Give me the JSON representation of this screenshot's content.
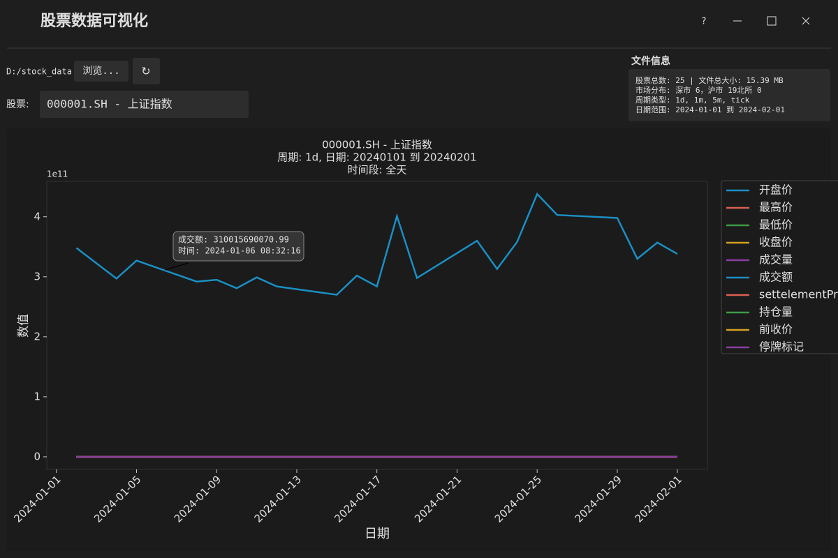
{
  "app": {
    "title": "股票数据可视化",
    "help": "?"
  },
  "controls": {
    "path": "D:/stock_data",
    "browse": "浏览...",
    "refresh": "↻",
    "stock_label": "股票:",
    "stock_value": "000001.SH - 上证指数"
  },
  "file_info": {
    "title": "文件信息",
    "lines": [
      "股票总数: 25  |  文件总大小: 15.39 MB",
      "市场分布: 深市 6，沪市 19北所 0",
      "周期类型: 1d, 1m, 5m, tick",
      "日期范围: 2024-01-01 到 2024-02-01"
    ]
  },
  "chart_data": {
    "type": "line",
    "title": [
      "000001.SH - 上证指数",
      "周期: 1d, 日期: 20240101 到 20240201",
      "时间段: 全天"
    ],
    "x_label": "日期",
    "y_label": "数值",
    "y_offset_label": "1e11",
    "annotation": [
      "成交额: 310015690070.99",
      "时间: 2024-01-06 08:32:16"
    ],
    "x": [
      "2024-01-02",
      "2024-01-04",
      "2024-01-05",
      "2024-01-08",
      "2024-01-09",
      "2024-01-10",
      "2024-01-11",
      "2024-01-12",
      "2024-01-15",
      "2024-01-16",
      "2024-01-17",
      "2024-01-18",
      "2024-01-19",
      "2024-01-22",
      "2024-01-23",
      "2024-01-24",
      "2024-01-25",
      "2024-01-26",
      "2024-01-29",
      "2024-01-30",
      "2024-01-31",
      "2024-02-01"
    ],
    "xlim": [
      "2023-12-31T12:30",
      "2024-02-02T12:00"
    ],
    "xticks": [
      "2024-01-01",
      "2024-01-05",
      "2024-01-09",
      "2024-01-13",
      "2024-01-17",
      "2024-01-21",
      "2024-01-25",
      "2024-01-29",
      "2024-02-01"
    ],
    "ylim": [
      -0.21,
      4.59
    ],
    "yticks": [
      0,
      1,
      2,
      3,
      4
    ],
    "legend": "upper right outside",
    "series": [
      {
        "name": "开盘价",
        "color": "#1a8fc4",
        "values": [
          0,
          0,
          0,
          0,
          0,
          0,
          0,
          0,
          0,
          0,
          0,
          0,
          0,
          0,
          0,
          0,
          0,
          0,
          0,
          0,
          0,
          0
        ]
      },
      {
        "name": "最高价",
        "color": "#d9604f",
        "values": [
          0,
          0,
          0,
          0,
          0,
          0,
          0,
          0,
          0,
          0,
          0,
          0,
          0,
          0,
          0,
          0,
          0,
          0,
          0,
          0,
          0,
          0
        ]
      },
      {
        "name": "最低价",
        "color": "#3d9a44",
        "values": [
          0,
          0,
          0,
          0,
          0,
          0,
          0,
          0,
          0,
          0,
          0,
          0,
          0,
          0,
          0,
          0,
          0,
          0,
          0,
          0,
          0,
          0
        ]
      },
      {
        "name": "收盘价",
        "color": "#d4a021",
        "values": [
          0,
          0,
          0,
          0,
          0,
          0,
          0,
          0,
          0,
          0,
          0,
          0,
          0,
          0,
          0,
          0,
          0,
          0,
          0,
          0,
          0,
          0
        ]
      },
      {
        "name": "成交量",
        "color": "#8a3d9e",
        "values": [
          0,
          0,
          0,
          0,
          0,
          0,
          0,
          0,
          0,
          0,
          0,
          0,
          0,
          0,
          0,
          0,
          0,
          0,
          0,
          0,
          0,
          0
        ]
      },
      {
        "name": "成交额",
        "color": "#1a8fc4",
        "values": [
          3.48,
          2.97,
          3.27,
          2.92,
          2.95,
          2.81,
          2.99,
          2.84,
          2.7,
          3.02,
          2.84,
          4.01,
          2.98,
          3.6,
          3.13,
          3.58,
          4.38,
          4.03,
          3.98,
          3.3,
          3.57,
          3.38
        ]
      },
      {
        "name": "settelementPr",
        "color": "#d9604f",
        "values": [
          0,
          0,
          0,
          0,
          0,
          0,
          0,
          0,
          0,
          0,
          0,
          0,
          0,
          0,
          0,
          0,
          0,
          0,
          0,
          0,
          0,
          0
        ]
      },
      {
        "name": "持仓量",
        "color": "#3d9a44",
        "values": [
          0,
          0,
          0,
          0,
          0,
          0,
          0,
          0,
          0,
          0,
          0,
          0,
          0,
          0,
          0,
          0,
          0,
          0,
          0,
          0,
          0,
          0
        ]
      },
      {
        "name": "前收价",
        "color": "#d4a021",
        "values": [
          0,
          0,
          0,
          0,
          0,
          0,
          0,
          0,
          0,
          0,
          0,
          0,
          0,
          0,
          0,
          0,
          0,
          0,
          0,
          0,
          0,
          0
        ]
      },
      {
        "name": "停牌标记",
        "color": "#8a3d9e",
        "values": [
          0,
          0,
          0,
          0,
          0,
          0,
          0,
          0,
          0,
          0,
          0,
          0,
          0,
          0,
          0,
          0,
          0,
          0,
          0,
          0,
          0,
          0
        ]
      }
    ]
  }
}
